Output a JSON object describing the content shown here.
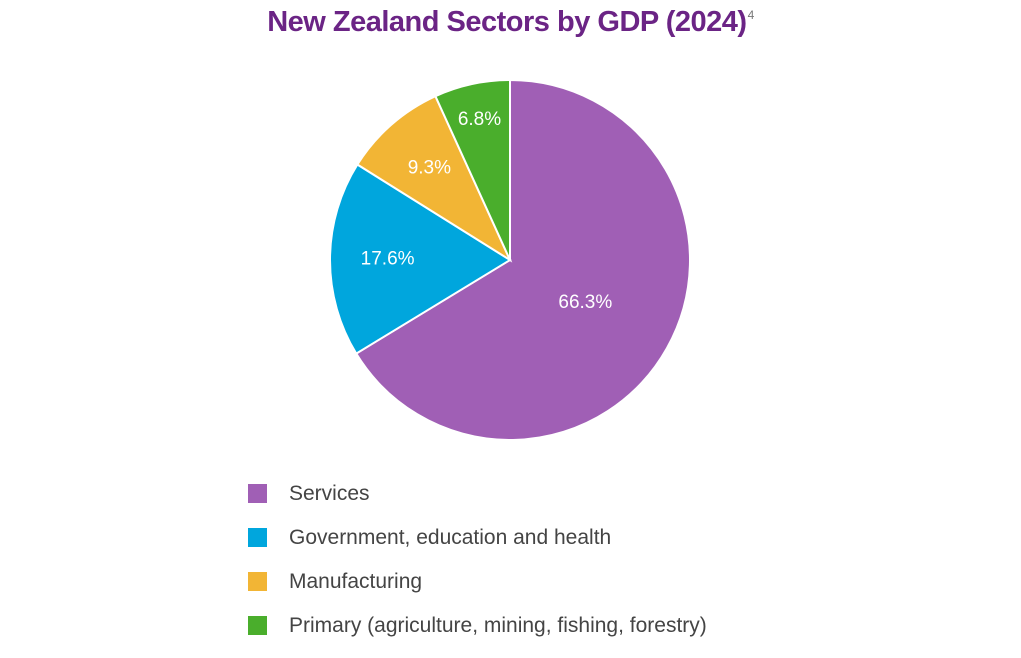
{
  "title": "New Zealand Sectors by GDP (2024)",
  "title_footnote": "4",
  "chart_data": {
    "type": "pie",
    "title": "New Zealand Sectors by GDP (2024)",
    "slices": [
      {
        "label": "Services",
        "value": 66.3,
        "display": "66.3%",
        "color": "#a05fb5"
      },
      {
        "label": "Government, education and health",
        "value": 17.6,
        "display": "17.6%",
        "color": "#00a6dd"
      },
      {
        "label": "Manufacturing",
        "value": 9.3,
        "display": "9.3%",
        "color": "#f2b535"
      },
      {
        "label": "Primary (agriculture, mining, fishing, forestry)",
        "value": 6.8,
        "display": "6.8%",
        "color": "#4aae2c"
      }
    ],
    "start_angle": "12 o'clock",
    "direction": "clockwise",
    "legend_position": "bottom"
  }
}
